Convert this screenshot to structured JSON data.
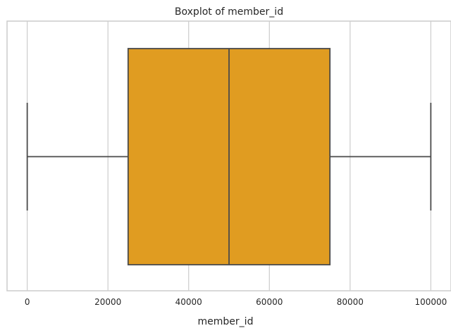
{
  "chart_data": {
    "type": "boxplot",
    "title": "Boxplot of member_id",
    "xlabel": "member_id",
    "ylabel": "",
    "xlim": [
      -5000,
      105000
    ],
    "xticks": [
      0,
      20000,
      40000,
      60000,
      80000,
      100000
    ],
    "xtick_labels": [
      "0",
      "20000",
      "40000",
      "60000",
      "80000",
      "100000"
    ],
    "grid": true,
    "box": {
      "whisker_low": 0,
      "q1": 25000,
      "median": 50000,
      "q3": 75000,
      "whisker_high": 100000
    },
    "colors": {
      "box_fill": "#E09C21",
      "lines": "#4A4A4A",
      "grid": "#CCCCCC"
    }
  }
}
